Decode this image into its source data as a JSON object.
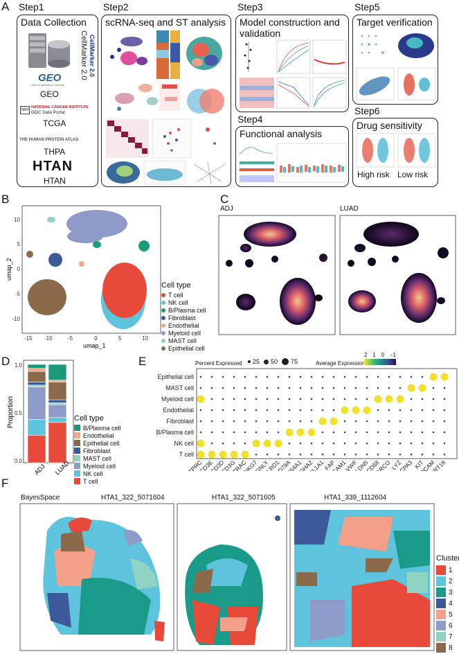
{
  "panels": {
    "A": "A",
    "B": "B",
    "C": "C",
    "D": "D",
    "E": "E",
    "F": "F"
  },
  "step1": {
    "label": "Step1",
    "title": "Data Collection",
    "sources": [
      "GEO",
      "TCGA",
      "THPA",
      "HTAN"
    ],
    "cellmarker": "CellMarker 2.0",
    "geo_logo": "GEO",
    "nci": "NATIONAL CANCER INSTITUTE",
    "gdc": "GDC Data Portal",
    "hpa": "THE HUMAN PROTEIN ATLAS",
    "htan_logo": "HTAN"
  },
  "step2": {
    "label": "Step2",
    "title": "scRNA-seq and ST analysis"
  },
  "step3": {
    "label": "Step3",
    "title": "Model construction and validation"
  },
  "step4": {
    "label": "Step4",
    "title": "Functional analysis"
  },
  "step5": {
    "label": "Step5",
    "title": "Target verification"
  },
  "step6": {
    "label": "Step6",
    "title": "Drug sensitivity",
    "groups": [
      "High risk",
      "Low risk"
    ]
  },
  "panelB": {
    "xlabel": "umap_1",
    "ylabel": "umap_2",
    "xticks": [
      "-15",
      "-10",
      "-5",
      "0",
      "5",
      "10"
    ],
    "yticks": [
      "10",
      "5",
      "0",
      "-5",
      "-10"
    ],
    "legend_title": "Cell type",
    "cell_types": [
      "T cell",
      "NK cell",
      "B/Plasma cell",
      "Fibroblast",
      "Endothelial",
      "Myeloid cell",
      "MAST cell",
      "Epithelial cell"
    ],
    "colors": [
      "#e84a3a",
      "#5ec3dc",
      "#1a9a78",
      "#3c5a9a",
      "#f2a68a",
      "#8e9ac8",
      "#8fd3c2",
      "#8a6a4a"
    ]
  },
  "panelC": {
    "titles": [
      "ADJ",
      "LUAD"
    ]
  },
  "panelD": {
    "ylabel": "Proportion",
    "yticks": [
      "1.0",
      "0.5",
      "0.0"
    ],
    "legend_title": "Cell type",
    "chart_data": {
      "type": "bar",
      "categories": [
        "ADJ",
        "LUAD"
      ],
      "series": [
        {
          "name": "T cell",
          "values": [
            0.28,
            0.41
          ]
        },
        {
          "name": "NK cell",
          "values": [
            0.16,
            0.05
          ]
        },
        {
          "name": "Myeloid cell",
          "values": [
            0.33,
            0.13
          ]
        },
        {
          "name": "MAST cell",
          "values": [
            0.02,
            0.02
          ]
        },
        {
          "name": "Fibroblast",
          "values": [
            0.03,
            0.03
          ]
        },
        {
          "name": "Epithelial cell",
          "values": [
            0.11,
            0.18
          ]
        },
        {
          "name": "Endothelial",
          "values": [
            0.03,
            0.02
          ]
        },
        {
          "name": "B/Plasma cell",
          "values": [
            0.04,
            0.16
          ]
        }
      ],
      "ylim": [
        0,
        1
      ]
    },
    "legend": [
      "B/Plasma cell",
      "Endothelial",
      "Epithelial cell",
      "Fibroblast",
      "MAST cell",
      "Myeloid cell",
      "NK cell",
      "T cell"
    ],
    "legend_colors": [
      "#1a9a78",
      "#f2a68a",
      "#8a6a4a",
      "#3c5a9a",
      "#8fd3c2",
      "#8e9ac8",
      "#5ec3dc",
      "#e84a3a"
    ]
  },
  "panelE": {
    "pct_label": "Percent Expressed",
    "pct_sizes": [
      "25",
      "50",
      "75"
    ],
    "avg_label": "Average Expression",
    "avg_ticks": [
      "2",
      "1",
      "0",
      "−1"
    ],
    "rows": [
      "Epithelial cell",
      "MAST cell",
      "Myeloid cell",
      "Endothelial",
      "Fibroblast",
      "B/Plasma cell",
      "NK cell",
      "T cell"
    ],
    "genes": [
      "PTPRC",
      "CD3E",
      "CD3D",
      "CD3G",
      "TRAC",
      "NKG7",
      "GNLY",
      "KLRD1",
      "CD79A",
      "MS4A1",
      "IGHA2",
      "COL1A1",
      "FAP",
      "PECAM1",
      "VWF",
      "CLDN5",
      "CD68",
      "MARCO",
      "LYZ",
      "CPA3",
      "KIT",
      "EPCAM",
      "KRT18"
    ]
  },
  "panelF": {
    "method": "BayesSpace",
    "samples": [
      "HTA1_322_5071604",
      "HTA1_322_5071605",
      "HTA1_339_1112604"
    ],
    "legend_title": "Cluster",
    "clusters": [
      "1",
      "2",
      "3",
      "4",
      "5",
      "6",
      "7",
      "8"
    ],
    "colors": [
      "#e84a3a",
      "#5ec3dc",
      "#1a9a88",
      "#3c5a9a",
      "#f2a08a",
      "#8e9ac8",
      "#8fd3c2",
      "#8a6a4a"
    ]
  }
}
